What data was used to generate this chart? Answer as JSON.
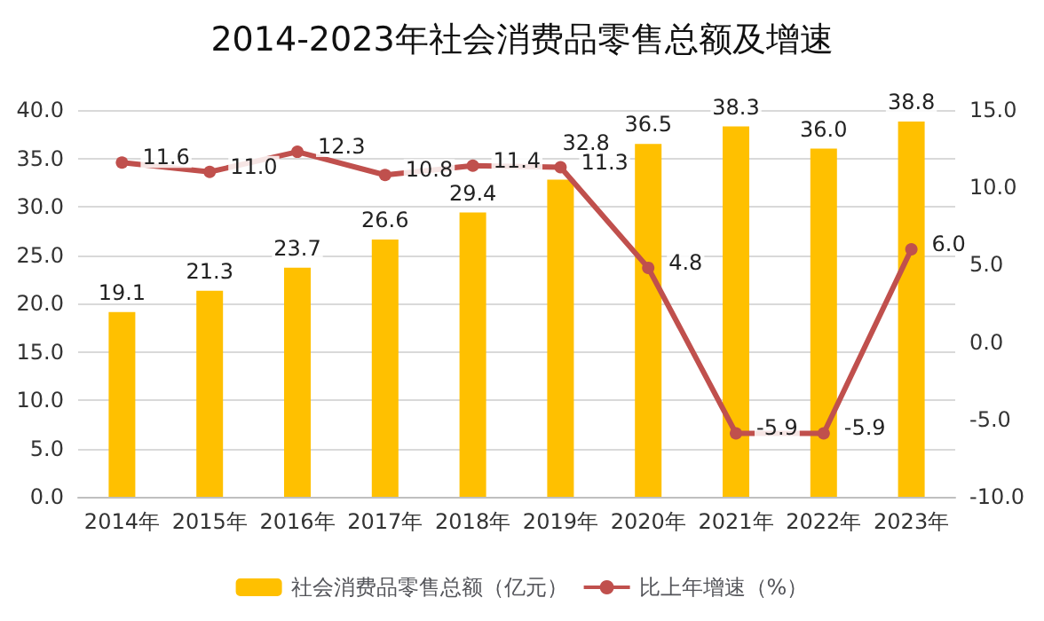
{
  "chart_data": {
    "type": "bar",
    "title": "2014-2023年社会消费品零售总额及增速",
    "categories": [
      "2014年",
      "2015年",
      "2016年",
      "2017年",
      "2018年",
      "2019年",
      "2020年",
      "2021年",
      "2022年",
      "2023年"
    ],
    "series": [
      {
        "name": "社会消费品零售总额（亿元）",
        "color": "#ffc000",
        "values": [
          19.1,
          21.3,
          23.7,
          26.6,
          29.4,
          32.8,
          36.5,
          38.3,
          36.0,
          38.8
        ],
        "value_labels": [
          "19.1",
          "21.3",
          "23.7",
          "26.6",
          "29.4",
          "32.8",
          "36.5",
          "38.3",
          "36.0",
          "38.8"
        ]
      },
      {
        "name": "比上年增速（%）",
        "type": "line",
        "axis": "y2",
        "color": "#c0504d",
        "values": [
          11.6,
          11.0,
          12.3,
          10.8,
          11.4,
          11.3,
          4.8,
          -5.9,
          -5.9,
          6.0
        ],
        "value_labels": [
          "11.6",
          "11.0",
          "12.3",
          "10.8",
          "11.4",
          "11.3",
          "4.8",
          "-5.9",
          "-5.9",
          "6.0"
        ]
      }
    ],
    "ylim": [
      0,
      40
    ],
    "yticks": [
      {
        "value": 0,
        "label": "0.0"
      },
      {
        "value": 5,
        "label": "5.0"
      },
      {
        "value": 10,
        "label": "10.0"
      },
      {
        "value": 15,
        "label": "15.0"
      },
      {
        "value": 20,
        "label": "20.0"
      },
      {
        "value": 25,
        "label": "25.0"
      },
      {
        "value": 30,
        "label": "30.0"
      },
      {
        "value": 35,
        "label": "35.0"
      },
      {
        "value": 40,
        "label": "40.0"
      }
    ],
    "y2lim": [
      -10,
      15
    ],
    "y2ticks": [
      {
        "value": -10,
        "label": "-10.0"
      },
      {
        "value": -5,
        "label": "-5.0"
      },
      {
        "value": 0,
        "label": "0.0"
      },
      {
        "value": 5,
        "label": "5.0"
      },
      {
        "value": 10,
        "label": "10.0"
      },
      {
        "value": 15,
        "label": "15.0"
      }
    ],
    "grid": "y",
    "legend": "bottom",
    "marker": "circle",
    "line_style": "solid"
  }
}
